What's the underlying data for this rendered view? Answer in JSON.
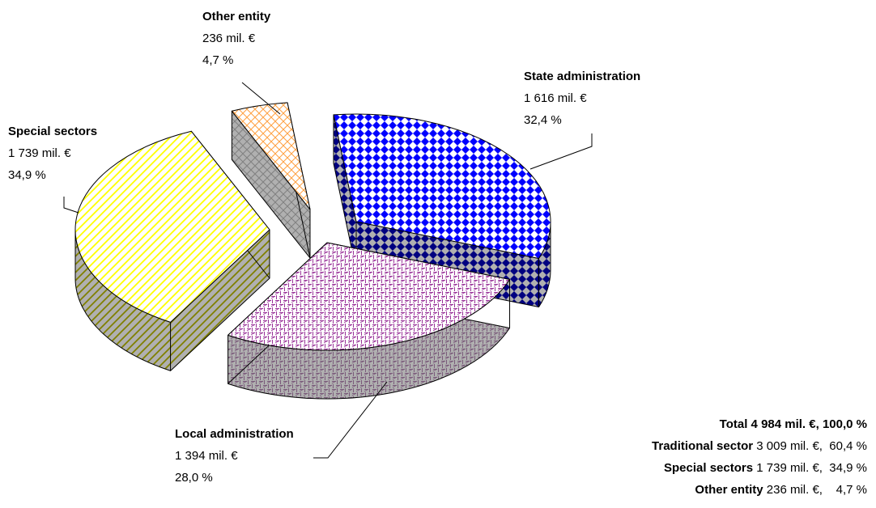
{
  "chart_data": {
    "type": "pie",
    "style": "3d-exploded",
    "title": "",
    "unit": "mil. €",
    "slices": [
      {
        "key": "state",
        "name": "State administration",
        "value_text": "1 616 mil. €",
        "percent_text": "32,4 %",
        "value": 1616,
        "percent": 32.4,
        "pattern": "diamond-checker",
        "colors": {
          "top": "#0000ff",
          "side": "#000080",
          "bg": "#ffffff"
        }
      },
      {
        "key": "local",
        "name": "Local administration",
        "value_text": "1 394 mil. €",
        "percent_text": "28,0 %",
        "value": 1394,
        "percent": 28.0,
        "pattern": "weave",
        "colors": {
          "top": "#993399",
          "side": "#7a5a7a",
          "bg": "#ffffff"
        }
      },
      {
        "key": "special",
        "name": "Special sectors",
        "value_text": "1 739 mil. €",
        "percent_text": "34,9 %",
        "value": 1739,
        "percent": 34.9,
        "pattern": "diagonal-stripes",
        "colors": {
          "top": "#ffff00",
          "side": "#808000",
          "bg": "#ffffff"
        }
      },
      {
        "key": "other",
        "name": "Other entity",
        "value_text": "236 mil. €",
        "percent_text": "4,7 %",
        "value": 236,
        "percent": 4.7,
        "pattern": "brick",
        "colors": {
          "top": "#ffa040",
          "side": "#808080",
          "bg": "#ffffff"
        }
      }
    ],
    "summary": [
      {
        "bold": "Total 4 984  mil. €, 100,0 %",
        "rest": ""
      },
      {
        "bold": "Traditional sector",
        "rest": " 3 009 mil. €,  60,4 %"
      },
      {
        "bold": "Special sectors",
        "rest": " 1 739 mil. €,  34,9 %"
      },
      {
        "bold": "Other entity",
        "rest": " 236 mil. €,    4,7 %"
      }
    ]
  }
}
